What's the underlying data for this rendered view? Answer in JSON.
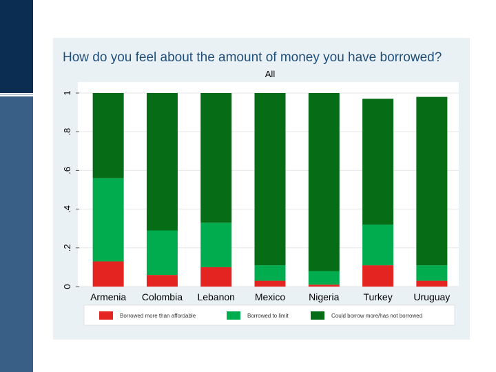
{
  "slide": {
    "accent_dark": "#0c2d52",
    "accent_light": "#3a5f86",
    "figure_bg": "#eaf1f5"
  },
  "chart_data": {
    "type": "bar",
    "stacked": true,
    "title": "How do you feel about the amount of money you have borrowed?",
    "subtitle": "All",
    "xlabel": "",
    "ylabel": "",
    "ylim": [
      0,
      1
    ],
    "yticks": [
      "0",
      ".2",
      ".4",
      ".6",
      ".8",
      "1"
    ],
    "yticks_values": [
      0,
      0.2,
      0.4,
      0.6,
      0.8,
      1
    ],
    "grid": true,
    "legend_position": "bottom",
    "categories": [
      "Armenia",
      "Colombia",
      "Lebanon",
      "Mexico",
      "Nigeria",
      "Turkey",
      "Uruguay"
    ],
    "series": [
      {
        "name": "Borrowed more than affordable",
        "color": "#e32420",
        "values": [
          0.13,
          0.06,
          0.1,
          0.03,
          0.01,
          0.11,
          0.03
        ]
      },
      {
        "name": "Borrowed to limit",
        "color": "#00ac4d",
        "values": [
          0.43,
          0.23,
          0.23,
          0.08,
          0.07,
          0.21,
          0.08
        ]
      },
      {
        "name": "Could borrow more/has not borrowed",
        "color": "#066d16",
        "values": [
          0.44,
          0.71,
          0.67,
          0.89,
          0.92,
          0.65,
          0.87
        ]
      }
    ]
  }
}
